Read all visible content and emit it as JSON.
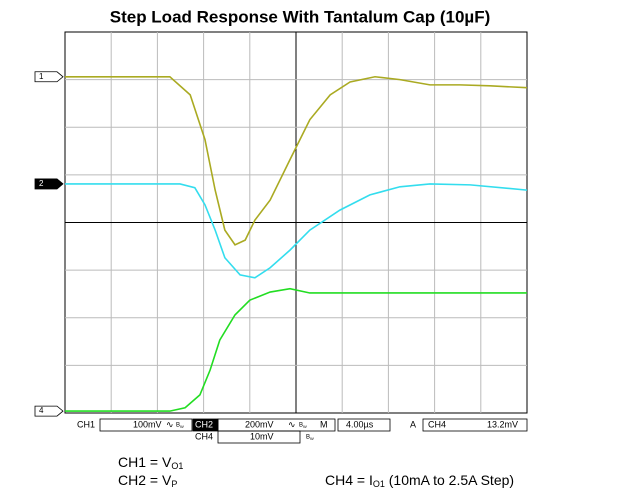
{
  "chart_data": {
    "type": "line",
    "title": "Step Load Response With Tantalum Cap (10µF)",
    "xlim": [
      0,
      10
    ],
    "ylim": [
      0,
      8
    ],
    "grid": true,
    "series": [
      {
        "name": "1",
        "color": "#aaaa22",
        "x": [
          0,
          2.27,
          2.71,
          3.03,
          3.25,
          3.46,
          3.68,
          3.9,
          4.11,
          4.44,
          4.87,
          5.3,
          5.74,
          6.17,
          6.71,
          7.25,
          7.9,
          8.55,
          9.2,
          10
        ],
        "values": [
          7.06,
          7.06,
          6.68,
          5.74,
          4.68,
          3.84,
          3.53,
          3.63,
          4.05,
          4.47,
          5.32,
          6.16,
          6.68,
          6.95,
          7.06,
          7.0,
          6.89,
          6.89,
          6.87,
          6.83
        ]
      },
      {
        "name": "2",
        "color": "#33ddee",
        "x": [
          0,
          2.49,
          2.81,
          3.03,
          3.25,
          3.46,
          3.79,
          4.11,
          4.44,
          4.87,
          5.3,
          5.95,
          6.6,
          7.25,
          7.9,
          8.77,
          10
        ],
        "values": [
          4.81,
          4.81,
          4.73,
          4.37,
          3.84,
          3.26,
          2.9,
          2.84,
          3.05,
          3.42,
          3.84,
          4.26,
          4.58,
          4.75,
          4.81,
          4.79,
          4.68
        ]
      },
      {
        "name": "4",
        "color": "#22dd22",
        "x": [
          0,
          2.27,
          2.6,
          2.92,
          3.14,
          3.35,
          3.68,
          4.0,
          4.44,
          4.87,
          5.3,
          6.17,
          10
        ],
        "values": [
          0.04,
          0.04,
          0.11,
          0.38,
          0.9,
          1.53,
          2.06,
          2.37,
          2.54,
          2.61,
          2.52,
          2.52,
          2.52
        ]
      }
    ]
  },
  "status": {
    "ch1": "CH1",
    "ch1_scale": "100mV",
    "ch2": "CH2",
    "ch2_scale": "200mV",
    "bw": "B",
    "bw_sub": "W",
    "coupling": "∿",
    "m": "M",
    "timebase": "4.00µs",
    "a": "A",
    "trig_ch": "CH4",
    "trig_level": "13.2mV",
    "ch4": "CH4",
    "ch4_scale": "10mV"
  },
  "captions": [
    {
      "text": "CH1 = V",
      "sub": "O1"
    },
    {
      "text": "CH2 = V",
      "sub": "P"
    },
    {
      "text": "CH4 = I",
      "sub": "O1",
      "suffix": " (10mA to 2.5A Step)"
    }
  ]
}
